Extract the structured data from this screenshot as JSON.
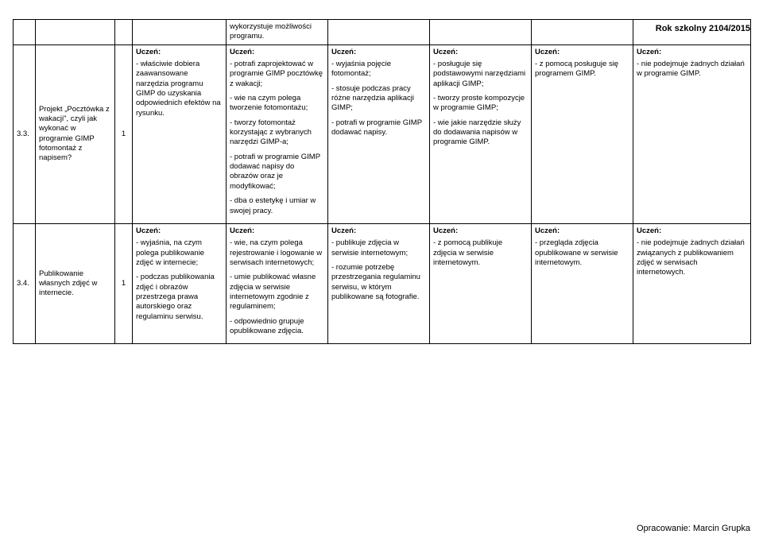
{
  "header": {
    "school_year": "Rok szkolny 2104/2015"
  },
  "footer": {
    "credit": "Opracowanie: Marcin Grupka"
  },
  "labels": {
    "uczen": "Uczeń:"
  },
  "row0": {
    "cell5": "wykorzystuje możliwości programu."
  },
  "row1": {
    "num": "3.3.",
    "topic": "Projekt „Pocztówka z wakacji\", czyli jak wykonać w programie GIMP fotomontaż z napisem?",
    "hours": "1",
    "c4_1": "- właściwie dobiera zaawansowane narzędzia programu GIMP do uzyskania odpowiednich efektów na rysunku.",
    "c5_1": "- potrafi zaprojektować w programie GIMP pocztówkę z wakacji;",
    "c5_2": "- wie na czym polega tworzenie fotomontażu;",
    "c5_3": "- tworzy fotomontaż korzystając z wybranych narzędzi GIMP-a;",
    "c5_4": "- potrafi w programie GIMP dodawać napisy do obrazów oraz je modyfikować;",
    "c5_5": "- dba o estetykę i umiar w swojej pracy.",
    "c6_1": "- wyjaśnia pojęcie fotomontaż;",
    "c6_2": "- stosuje podczas pracy różne narzędzia aplikacji GIMP;",
    "c6_3": "- potrafi w programie GIMP dodawać napisy.",
    "c7_1": "- posługuje się podstawowymi narzędziami aplikacji GIMP;",
    "c7_2": "- tworzy proste kompozycje w programie GIMP;",
    "c7_3": "- wie jakie narzędzie służy do dodawania napisów w programie GIMP.",
    "c8_1": "- z pomocą posługuje się programem GIMP.",
    "c9_1": "- nie podejmuje żadnych działań w programie GIMP."
  },
  "row2": {
    "num": "3.4.",
    "topic": "Publikowanie własnych zdjęć w internecie.",
    "hours": "1",
    "c4_1": "- wyjaśnia, na czym polega publikowanie zdjęć w internecie;",
    "c4_2": "- podczas publikowania zdjęć i obrazów przestrzega prawa autorskiego oraz regulaminu serwisu.",
    "c5_1": "- wie, na czym polega rejestrowanie i logowanie w serwisach internetowych;",
    "c5_2": "- umie publikować własne zdjęcia w serwisie internetowym zgodnie z regulaminem;",
    "c5_3": "- odpowiednio grupuje opublikowane zdjęcia.",
    "c6_1": "- publikuje zdjęcia w serwisie internetowym;",
    "c6_2": "- rozumie potrzebę przestrzegania regulaminu serwisu, w którym publikowane są fotografie.",
    "c7_1": "- z pomocą publikuje zdjęcia w serwisie internetowym.",
    "c8_1": "- przegląda zdjęcia opublikowane w serwisie internetowym.",
    "c9_1": "- nie podejmuje żadnych działań związanych z publikowaniem zdjęć w serwisach internetowych."
  }
}
